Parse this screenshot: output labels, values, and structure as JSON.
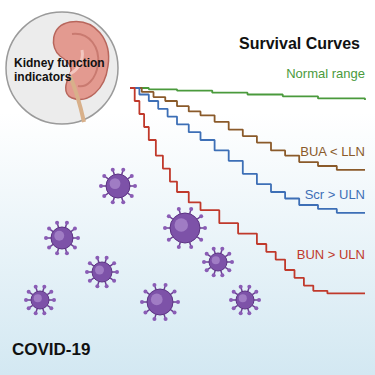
{
  "chart_data": {
    "type": "line",
    "title": "Survival Curves",
    "annotations": [
      "Kidney function indicators",
      "COVID-19"
    ],
    "line_style": "step",
    "tick_labels": false,
    "grid": false,
    "xlim": [
      0,
      100
    ],
    "ylim": [
      0,
      1
    ],
    "series": [
      {
        "name": "Normal range",
        "color": "#4a9a3c",
        "x": [
          0,
          8,
          20,
          35,
          50,
          65,
          80,
          100
        ],
        "values": [
          1,
          0.995,
          0.99,
          0.982,
          0.975,
          0.968,
          0.96,
          0.954
        ]
      },
      {
        "name": "BUA < LLN",
        "color": "#8a5a2a",
        "x": [
          0,
          5,
          10,
          15,
          20,
          25,
          30,
          36,
          42,
          48,
          54,
          60,
          66,
          72,
          80,
          88,
          100
        ],
        "values": [
          1,
          0.985,
          0.965,
          0.95,
          0.93,
          0.91,
          0.895,
          0.87,
          0.84,
          0.815,
          0.79,
          0.76,
          0.74,
          0.715,
          0.7,
          0.685,
          0.685
        ]
      },
      {
        "name": "Scr > ULN",
        "color": "#3d6fb6",
        "x": [
          0,
          4,
          8,
          12,
          16,
          20,
          25,
          30,
          36,
          42,
          48,
          54,
          60,
          66,
          72,
          80,
          88,
          100
        ],
        "values": [
          1,
          0.975,
          0.95,
          0.92,
          0.89,
          0.86,
          0.83,
          0.8,
          0.76,
          0.72,
          0.67,
          0.63,
          0.6,
          0.575,
          0.55,
          0.535,
          0.52,
          0.52
        ]
      },
      {
        "name": "BUN > ULN",
        "color": "#c0392b",
        "x": [
          0,
          2,
          4,
          6,
          8,
          11,
          14,
          17,
          20,
          25,
          30,
          38,
          46,
          54,
          58,
          62,
          66,
          70,
          74,
          78,
          84,
          100
        ],
        "values": [
          1,
          0.95,
          0.9,
          0.85,
          0.8,
          0.74,
          0.69,
          0.64,
          0.6,
          0.56,
          0.53,
          0.48,
          0.44,
          0.4,
          0.37,
          0.34,
          0.3,
          0.27,
          0.24,
          0.22,
          0.21,
          0.21
        ]
      }
    ]
  }
}
